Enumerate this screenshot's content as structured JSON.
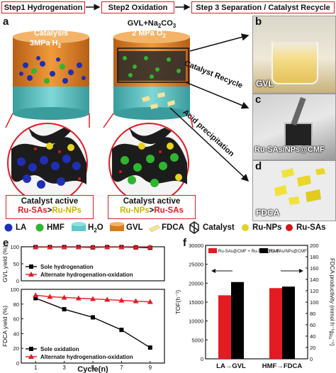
{
  "steps": {
    "step1": "Step1 Hydrogenation",
    "step2": "Step2 Oxidation",
    "step3": "Step 3  Separation / Catalyst Recycle"
  },
  "panel_a": {
    "letter": "a",
    "reactor1_line1": "Catalysis",
    "reactor1_line2": "3MPa H",
    "reactor1_sub": "2",
    "reactor2_line1": "GVL+Na",
    "reactor2_sub1": "2",
    "reactor2_mid": "CO",
    "reactor2_sub2": "3",
    "reactor2_line2": "2 MPa O",
    "reactor2_sub3": "2",
    "arrow_recycle": "Catalyst Recycle",
    "arrow_acid": "Acid precipitation",
    "box1_title": "Catalyst active",
    "box1_formula_a": "Ru-SAs",
    "box1_formula_op": ">",
    "box1_formula_b": "Ru-NPs",
    "box2_title": "Catalyst active",
    "box2_formula_a": "Ru-NPs",
    "box2_formula_op": ">",
    "box2_formula_b": "Ru-SAs"
  },
  "photos": {
    "b": {
      "letter": "b",
      "label": "GVL"
    },
    "c": {
      "letter": "c",
      "label": "Ru-SAs/NPs@CMF"
    },
    "d": {
      "letter": "d",
      "label": "FDCA"
    }
  },
  "legend": {
    "la": "LA",
    "hmf": "HMF",
    "h2o_a": "H",
    "h2o_sub": "2",
    "h2o_b": "O",
    "gvl": "GVL",
    "fdca": "FDCA",
    "catalyst": "Catalyst",
    "ru_nps": "Ru-NPs",
    "ru_sas": "Ru-SAs",
    "colors": {
      "la": "#1f2fb5",
      "hmf": "#2fb52f",
      "h2o": "#5fc8c8",
      "gvl": "#d97a1e",
      "fdca": "#f3e39a",
      "ru_nps": "#e6d21e",
      "ru_sas": "#d8161b"
    }
  },
  "chart_data": [
    {
      "panel": "e",
      "type": "line",
      "xlabel": "Cycle(n)",
      "x_ticks": [
        "1",
        "3",
        "5",
        "7",
        "9"
      ],
      "subplots": [
        {
          "ylabel": "GVL yield (%)",
          "ylim": [
            0,
            100
          ],
          "y_ticks": [
            "0",
            "50",
            "100"
          ],
          "series": [
            {
              "name": "Sole hydrogenation",
              "color": "#000000",
              "marker": "square",
              "x": [
                1,
                2,
                3,
                4,
                5,
                6,
                7,
                8,
                9
              ],
              "y": [
                99,
                99,
                99,
                99,
                98,
                99,
                99,
                98,
                97
              ]
            },
            {
              "name": "Alternate hydrogenation-oxidation",
              "color": "#e31b23",
              "marker": "triangle",
              "x": [
                1,
                2,
                3,
                4,
                5,
                6,
                7,
                8,
                9
              ],
              "y": [
                99,
                99,
                99,
                99,
                99,
                99,
                99,
                99,
                99
              ]
            }
          ],
          "legend": "bottom-left"
        },
        {
          "ylabel": "FDCA yield (%)",
          "ylim": [
            0,
            100
          ],
          "y_ticks": [
            "0",
            "20",
            "40",
            "60",
            "80",
            "100"
          ],
          "series": [
            {
              "name": "Sole oxidation",
              "color": "#000000",
              "marker": "square",
              "x": [
                1,
                3,
                5,
                7,
                9
              ],
              "y": [
                88,
                73,
                62,
                45,
                21
              ]
            },
            {
              "name": "Alternate hydrogenation-oxidation",
              "color": "#e31b23",
              "marker": "triangle",
              "x": [
                1,
                2,
                3,
                4,
                5,
                6,
                7,
                8,
                9
              ],
              "y": [
                92,
                90,
                89,
                88,
                87,
                86,
                85,
                84,
                83
              ]
            }
          ],
          "legend": "bottom-left"
        }
      ]
    },
    {
      "panel": "f",
      "type": "bar",
      "categories": [
        "LA→GVL",
        "HMF→FDCA"
      ],
      "ylabel": "TOF(h⁻¹)",
      "ylim": [
        0,
        30000
      ],
      "y_ticks": [
        "0",
        "5000",
        "10000",
        "15000",
        "20000",
        "25000",
        "30000"
      ],
      "y2label": "FDCA productivity (mmol h⁻¹g",
      "y2label_sub": "Ru",
      "y2label_end": "⁻¹)",
      "y2lim": [
        0,
        200
      ],
      "y2_ticks": [
        "0",
        "20",
        "40",
        "60",
        "80",
        "100",
        "120",
        "140",
        "160",
        "180",
        "200"
      ],
      "series": [
        {
          "name": "Ru-SAs@CMF + Ru-NPs@CMF",
          "color": "#e31b23",
          "values": [
            16800,
            18700
          ]
        },
        {
          "name": "Ru-SAs/NPs@CMF",
          "color": "#000000",
          "values": [
            20300,
            19100
          ]
        }
      ],
      "legend": "top"
    }
  ]
}
